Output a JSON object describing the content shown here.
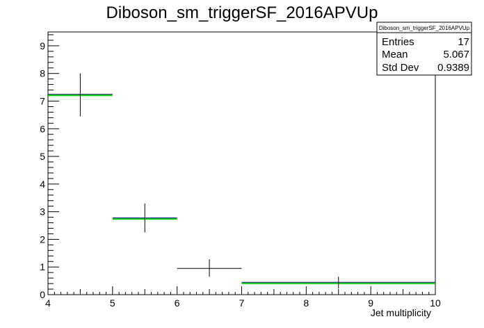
{
  "chart_data": {
    "type": "histogram",
    "title": "Diboson_sm_triggerSF_2016APVUp",
    "xlabel": "Jet multiplicity",
    "ylabel": "",
    "xlim": [
      4,
      10
    ],
    "ylim": [
      0,
      9.5
    ],
    "x_ticks": [
      "4",
      "5",
      "6",
      "7",
      "8",
      "9",
      "10"
    ],
    "y_ticks": [
      "0",
      "1",
      "2",
      "3",
      "4",
      "5",
      "6",
      "7",
      "8",
      "9"
    ],
    "bins": [
      {
        "low": 4,
        "high": 5,
        "center": 4.5,
        "value": 7.22,
        "err_low": 6.45,
        "err_high": 8.0,
        "fill": true
      },
      {
        "low": 5,
        "high": 6,
        "center": 5.5,
        "value": 2.75,
        "err_low": 2.25,
        "err_high": 3.3,
        "fill": true
      },
      {
        "low": 6,
        "high": 7,
        "center": 6.5,
        "value": 0.95,
        "err_low": 0.65,
        "err_high": 1.28,
        "fill": false
      },
      {
        "low": 7,
        "high": 10,
        "center": 8.5,
        "value": 0.42,
        "err_low": 0.22,
        "err_high": 0.65,
        "fill": true
      }
    ],
    "line_colors": {
      "fill": "#00cc00",
      "outline": "#000080",
      "error": "#000000"
    },
    "stats": {
      "title": "Diboson_sm_triggerSF_2016APVUp",
      "rows": [
        {
          "label": "Entries",
          "value": "17"
        },
        {
          "label": "Mean",
          "value": "5.067"
        },
        {
          "label": "Std Dev",
          "value": "0.9389"
        }
      ]
    }
  }
}
